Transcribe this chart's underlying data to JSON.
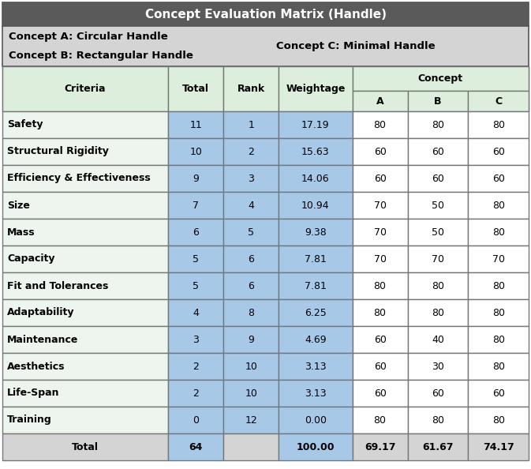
{
  "title": "Concept Evaluation Matrix (Handle)",
  "legend_left1": "Concept A: Circular Handle",
  "legend_left2": "Concept B: Rectangular Handle",
  "legend_right": "Concept C: Minimal Handle",
  "col_headers": [
    "Criteria",
    "Total",
    "Rank",
    "Weightage"
  ],
  "abc_headers": [
    "A",
    "B",
    "C"
  ],
  "rows": [
    [
      "Safety",
      "11",
      "1",
      "17.19",
      "80",
      "80",
      "80"
    ],
    [
      "Structural Rigidity",
      "10",
      "2",
      "15.63",
      "60",
      "60",
      "60"
    ],
    [
      "Efficiency & Effectiveness",
      "9",
      "3",
      "14.06",
      "60",
      "60",
      "60"
    ],
    [
      "Size",
      "7",
      "4",
      "10.94",
      "70",
      "50",
      "80"
    ],
    [
      "Mass",
      "6",
      "5",
      "9.38",
      "70",
      "50",
      "80"
    ],
    [
      "Capacity",
      "5",
      "6",
      "7.81",
      "70",
      "70",
      "70"
    ],
    [
      "Fit and Tolerances",
      "5",
      "6",
      "7.81",
      "80",
      "80",
      "80"
    ],
    [
      "Adaptability",
      "4",
      "8",
      "6.25",
      "80",
      "80",
      "80"
    ],
    [
      "Maintenance",
      "3",
      "9",
      "4.69",
      "60",
      "40",
      "80"
    ],
    [
      "Aesthetics",
      "2",
      "10",
      "3.13",
      "60",
      "30",
      "80"
    ],
    [
      "Life-Span",
      "2",
      "10",
      "3.13",
      "60",
      "60",
      "60"
    ],
    [
      "Training",
      "0",
      "12",
      "0.00",
      "80",
      "80",
      "80"
    ]
  ],
  "total_row": [
    "Total",
    "64",
    "",
    "100.00",
    "69.17",
    "61.67",
    "74.17"
  ],
  "title_bg": "#5a5a5a",
  "title_fg": "#ffffff",
  "legend_bg": "#d4d4d4",
  "header_bg": "#ddeedd",
  "data_criteria_bg": "#eef5ee",
  "data_middle_bg": "#a8c8e8",
  "data_concept_bg": "#ffffff",
  "total_bg": "#d4d4d4",
  "border_color": "#888888",
  "font_size_title": 11,
  "font_size_legend": 9.5,
  "font_size_header": 9,
  "font_size_data": 9
}
